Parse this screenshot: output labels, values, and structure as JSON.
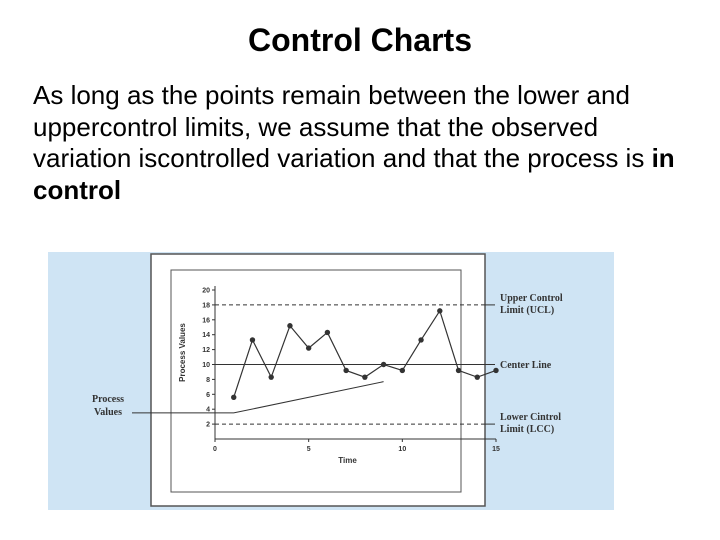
{
  "slide": {
    "title": "Control Charts",
    "body_lead": " As long as the points remain between the lower and uppercontrol limits, we assume that the observed variation iscontrolled variation and that the process is ",
    "body_emphasis": "in control"
  },
  "chart_data": {
    "type": "line",
    "title": "",
    "xlabel": "Time",
    "ylabel": "Process Values",
    "xlim": [
      0,
      15
    ],
    "ylim": [
      0,
      20
    ],
    "x_ticks": [
      0,
      5,
      10,
      15
    ],
    "y_ticks": [
      2,
      4,
      6,
      8,
      10,
      12,
      14,
      16,
      18,
      20
    ],
    "grid": false,
    "series": [
      {
        "x": [
          1,
          2,
          3,
          4,
          5,
          6,
          7,
          8,
          9,
          10,
          11,
          12,
          13,
          14,
          15
        ],
        "y": [
          5.6,
          13.3,
          8.3,
          15.2,
          12.2,
          14.3,
          9.2,
          8.3,
          10,
          9.2,
          13.3,
          17.2,
          9.2,
          8.3,
          9.2
        ]
      }
    ],
    "reference_lines": [
      {
        "label": "Upper Control Limit (UCL)",
        "value": 18,
        "style": "dashed"
      },
      {
        "label": "Center Line",
        "value": 10,
        "style": "solid"
      },
      {
        "label": "Lower Cintrol Limit (LCC)",
        "value": 2,
        "style": "dashed"
      }
    ],
    "annotations": [
      {
        "label": "Process Values",
        "points_to": "data series"
      }
    ],
    "colors": {
      "background": "#cfe4f4",
      "panel": "#ffffff",
      "ink": "#333333"
    }
  }
}
